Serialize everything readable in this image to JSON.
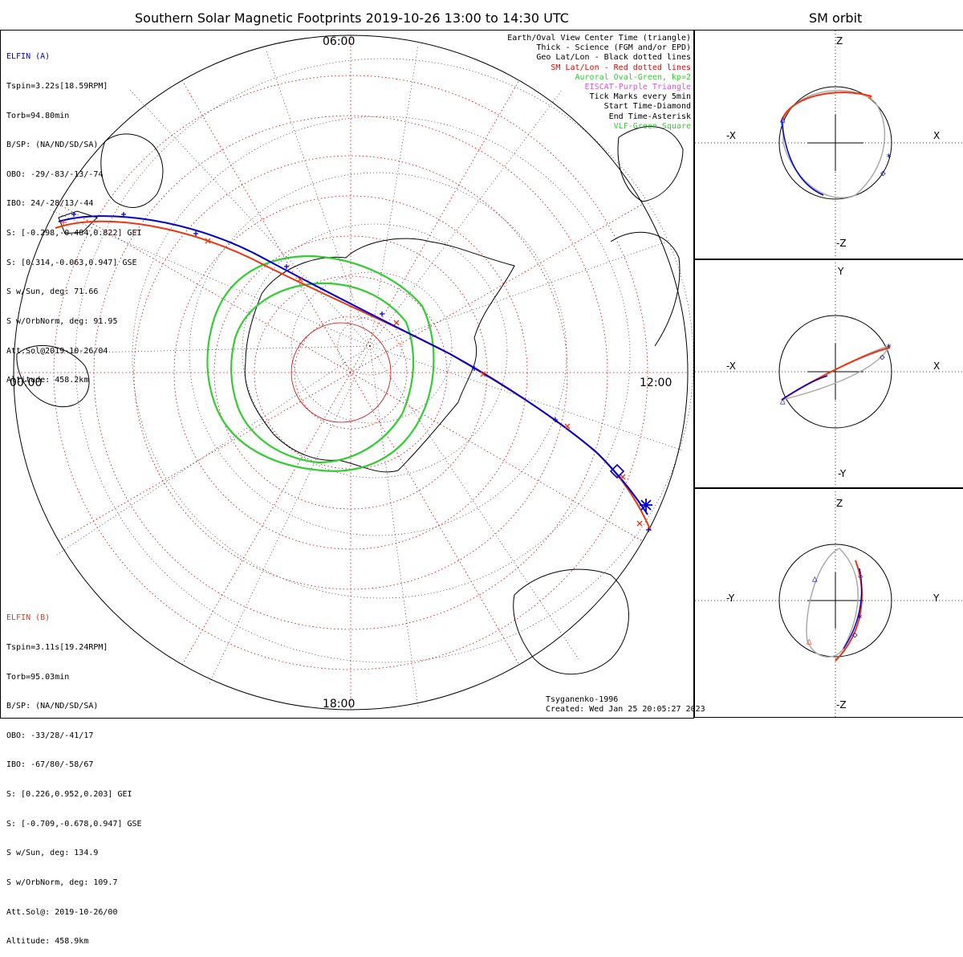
{
  "header": {
    "main_title": "Southern Solar Magnetic Footprints 2019-10-26 13:00 to 14:30 UTC",
    "side_title": "SM orbit"
  },
  "map": {
    "clock_labels": {
      "top": "06:00",
      "left": "00:00",
      "right": "12:00",
      "bottom": "18:00"
    },
    "colors": {
      "elfin_a": "#0000cc",
      "elfin_b": "#ee3311",
      "oval": "#33cc33",
      "sm_grid": "#dd0000",
      "geo_grid": "#000000"
    }
  },
  "elfin_a": {
    "name": "ELFIN (A)",
    "lines": [
      "Tspin=3.22s[18.59RPM]",
      "Torb=94.80min",
      "B/SP: (NA/ND/SD/SA)",
      "OBO: -29/-83/-13/-74",
      "IBO: 24/-28/13/-44",
      "S: [-0.298,-0.484,0.822] GEI",
      "S: [0.314,-0.063,0.947] GSE",
      "S w/Sun, deg: 71.66",
      "S w/OrbNorm, deg: 91.95",
      "Att.Sol@2019-10-26/04",
      "Altitude: 458.2km"
    ]
  },
  "elfin_b": {
    "name": "ELFIN (B)",
    "lines": [
      "Tspin=3.11s[19.24RPM]",
      "Torb=95.03min",
      "B/SP: (NA/ND/SD/SA)",
      "OBO: -33/28/-41/17",
      "IBO: -67/80/-58/67",
      "S: [0.226,0.952,0.203] GEI",
      "S: [-0.709,-0.678,0.947] GSE",
      "S w/Sun, deg: 134.9",
      "S w/OrbNorm, deg: 109.7",
      "Att.Sol@: 2019-10-26/00",
      "Altitude: 458.9km"
    ]
  },
  "legend": [
    {
      "text": "Earth/Oval View Center Time (triangle)",
      "color": "#000000"
    },
    {
      "text": "Thick - Science (FGM and/or EPD)",
      "color": "#000000"
    },
    {
      "text": "Geo Lat/Lon - Black dotted lines",
      "color": "#000000"
    },
    {
      "text": "SM Lat/Lon - Red dotted lines",
      "color": "#ee0000"
    },
    {
      "text": "Auroral Oval-Green, kp=2",
      "color": "#33cc33"
    },
    {
      "text": "EISCAT-Purple Triangle",
      "color": "#dd55dd"
    },
    {
      "text": "Tick Marks every 5min",
      "color": "#000000"
    },
    {
      "text": "Start Time-Diamond",
      "color": "#000000"
    },
    {
      "text": "End Time-Asterisk",
      "color": "#000000"
    },
    {
      "text": "VLF-Green Square",
      "color": "#33cc33"
    }
  ],
  "credit": {
    "line1": "Tsyganenko-1996",
    "line2": "Created: Wed Jan 25 20:05:27 2023"
  },
  "panels": {
    "xz": {
      "top": "Z",
      "bottom": "-Z",
      "left": "-X",
      "right": "X"
    },
    "xy": {
      "top": "Y",
      "bottom": "-Y",
      "left": "-X",
      "right": "X"
    },
    "yz": {
      "top": "Z",
      "bottom": "-Z",
      "left": "-Y",
      "right": "Y"
    }
  }
}
